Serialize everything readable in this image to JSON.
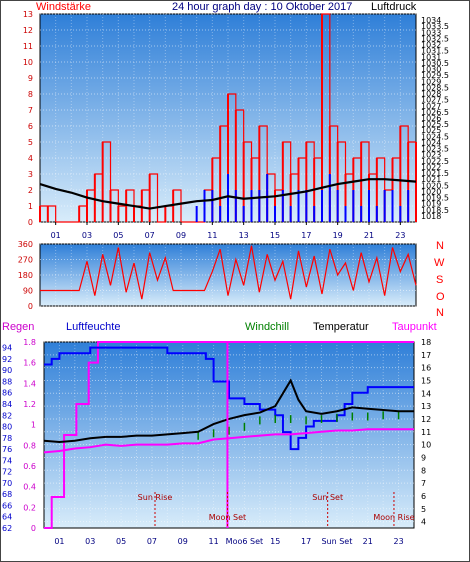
{
  "colors": {
    "red": "#ff0000",
    "blue": "#0000ff",
    "black": "#000000",
    "magenta": "#ff00ff",
    "green": "#008000",
    "dark_red": "#aa0000",
    "navy": "#000080",
    "bg_top": "#2f7fd8",
    "bg_bottom": "#d8ecfa"
  },
  "header": {
    "left": "Windstärke",
    "center": "24 hour graph day : 10 Oktober 2017",
    "right": "Luftdruck"
  },
  "direction_letters": [
    "N",
    "W",
    "S",
    "O",
    "N"
  ],
  "lower_header": {
    "regen": "Regen",
    "luftfeuchte": "Luftfeuchte",
    "windchill": "Windchill",
    "temperatur": "Temperatur",
    "taupunkt": "Taupunkt"
  },
  "annotations": [
    {
      "label": "Sun Rise",
      "hour": 7.2,
      "row": "upper"
    },
    {
      "label": "Moon Set",
      "hour": 11.9,
      "row": "lower"
    },
    {
      "label": "Sun Set",
      "hour": 18.4,
      "row": "upper"
    },
    {
      "label": "Moon Rise",
      "hour": 22.7,
      "row": "lower"
    }
  ],
  "x_ticks_bottom": [
    "01",
    "03",
    "05",
    "07",
    "09",
    "11",
    "Moo6 Set",
    "15",
    "17",
    "Sun Set",
    "21",
    "23"
  ],
  "chart_data": [
    {
      "type": "line",
      "title": "24 hour graph day : 10 Oktober 2017",
      "xlabel": "",
      "xlim": [
        0,
        24
      ],
      "x_ticks": [
        "01",
        "03",
        "05",
        "07",
        "09",
        "11",
        "13",
        "15",
        "17",
        "19",
        "21",
        "23"
      ],
      "y_left": {
        "label": "Windstärke",
        "ylim": [
          0,
          13
        ],
        "ticks": [
          "0",
          "1",
          "2",
          "3",
          "4",
          "5",
          "6",
          "7",
          "8",
          "9",
          "10",
          "11",
          "12",
          "13"
        ]
      },
      "y_right": {
        "label": "Luftdruck",
        "ylim": [
          1017.5,
          1034.5
        ],
        "ticks": [
          "1018",
          "1018.5",
          "1019",
          "1019.5",
          "1020",
          "1020.5",
          "1021",
          "1021.5",
          "1022",
          "1022.5",
          "1023",
          "1023.5",
          "1024",
          "1024.5",
          "1025",
          "1025.5",
          "1026",
          "1026.5",
          "1027",
          "1027.5",
          "1028",
          "1028.5",
          "1029",
          "1029.5",
          "1030",
          "1030.5",
          "1031",
          "1031.5",
          "1032",
          "1032.5",
          "1033",
          "1033.5",
          "1034"
        ]
      },
      "series": [
        {
          "name": "Windstärke",
          "axis": "left",
          "color": "#ff0000",
          "x": [
            0,
            0.5,
            1,
            1.5,
            2,
            2.5,
            3,
            3.5,
            4,
            4.5,
            5,
            5.5,
            6,
            6.5,
            7,
            7.5,
            8,
            8.5,
            9,
            9.5,
            10,
            10.5,
            11,
            11.5,
            12,
            12.5,
            13,
            13.5,
            14,
            14.5,
            15,
            15.5,
            16,
            16.5,
            17,
            17.5,
            18,
            18.5,
            19,
            19.5,
            20,
            20.5,
            21,
            21.5,
            22,
            22.5,
            23,
            23.5,
            24
          ],
          "y": [
            1,
            1,
            0,
            0,
            0,
            1,
            2,
            3,
            5,
            2,
            1,
            2,
            1,
            2,
            3,
            0,
            1,
            2,
            0,
            0,
            0,
            2,
            4,
            6,
            8,
            7,
            5,
            4,
            6,
            3,
            2,
            5,
            3,
            4,
            5,
            4,
            13,
            6,
            5,
            3,
            4,
            5,
            3,
            4,
            2,
            4,
            6,
            5,
            5
          ]
        },
        {
          "name": "Windstärke (Mittel)",
          "axis": "left",
          "color": "#0000ff",
          "x": [
            10,
            10.5,
            11,
            11.5,
            12,
            12.5,
            13,
            13.5,
            14,
            14.5,
            15,
            15.5,
            16,
            16.5,
            17,
            17.5,
            18,
            18.5,
            19,
            19.5,
            20,
            20.5,
            21,
            21.5,
            22,
            22.5,
            23,
            23.5
          ],
          "y": [
            1,
            2,
            2,
            1,
            3,
            2,
            1,
            2,
            2,
            3,
            1,
            2,
            1,
            2,
            2,
            1,
            2,
            3,
            2,
            1,
            2,
            1,
            2,
            1,
            2,
            2,
            1,
            2
          ]
        },
        {
          "name": "Luftdruck",
          "axis": "right",
          "color": "#000000",
          "x": [
            0,
            1,
            2,
            3,
            4,
            5,
            6,
            7,
            8,
            9,
            10,
            11,
            12,
            13,
            14,
            15,
            16,
            17,
            18,
            19,
            20,
            21,
            22,
            23,
            24
          ],
          "y": [
            1020.6,
            1020.2,
            1019.9,
            1019.5,
            1019.2,
            1019.0,
            1018.8,
            1018.6,
            1018.8,
            1019.0,
            1019.2,
            1019.3,
            1019.6,
            1019.4,
            1019.5,
            1019.6,
            1019.8,
            1020.0,
            1020.3,
            1020.6,
            1020.8,
            1021.0,
            1021.0,
            1020.9,
            1020.8
          ]
        }
      ]
    },
    {
      "type": "line",
      "title": "",
      "xlim": [
        0,
        24
      ],
      "x_ticks": [
        "01",
        "03",
        "05",
        "07",
        "09",
        "11",
        "13",
        "15",
        "17",
        "19",
        "21",
        "23"
      ],
      "y_left": {
        "label": "",
        "ylim": [
          0,
          360
        ],
        "ticks": [
          "0",
          "90",
          "180",
          "270",
          "360"
        ]
      },
      "y_right_labels": [
        "N",
        "W",
        "S",
        "O",
        "N"
      ],
      "series": [
        {
          "name": "Windrichtung",
          "color": "#ff0000",
          "x": [
            0,
            0.5,
            1,
            1.5,
            2,
            2.5,
            3,
            3.5,
            4,
            4.5,
            5,
            5.5,
            6,
            6.5,
            7,
            7.5,
            8,
            8.5,
            9,
            9.5,
            10,
            10.5,
            11,
            11.5,
            12,
            12.5,
            13,
            13.5,
            14,
            14.5,
            15,
            15.5,
            16,
            16.5,
            17,
            17.5,
            18,
            18.5,
            19,
            19.5,
            20,
            20.5,
            21,
            21.5,
            22,
            22.5,
            23,
            23.5,
            24
          ],
          "y": [
            90,
            90,
            90,
            90,
            90,
            90,
            260,
            60,
            300,
            120,
            340,
            80,
            250,
            40,
            310,
            150,
            280,
            90,
            90,
            90,
            90,
            90,
            200,
            330,
            60,
            270,
            120,
            350,
            80,
            300,
            150,
            260,
            40,
            320,
            110,
            290,
            70,
            330,
            180,
            250,
            90,
            310,
            140,
            280,
            60,
            340,
            200,
            300,
            120
          ]
        }
      ]
    },
    {
      "type": "line",
      "title": "",
      "xlim": [
        0,
        24
      ],
      "x_ticks": [
        "01",
        "03",
        "05",
        "07",
        "09",
        "11",
        "13",
        "15",
        "17",
        "19",
        "21",
        "23"
      ],
      "y_left_regen": {
        "label": "Regen",
        "ylim": [
          0,
          1.8
        ],
        "ticks": [
          "0",
          "0.2",
          "0.4",
          "0.6",
          "0.8",
          "1",
          "1.2",
          "1.4",
          "1.6",
          "1.8"
        ]
      },
      "y_left_feuchte": {
        "label": "Luftfeuchte",
        "ylim": [
          62,
          95
        ],
        "ticks": [
          "62",
          "64",
          "66",
          "68",
          "70",
          "72",
          "74",
          "76",
          "78",
          "80",
          "82",
          "84",
          "86",
          "88",
          "90",
          "92",
          "94"
        ]
      },
      "y_right": {
        "label": "Temperatur",
        "ylim": [
          3.5,
          18
        ],
        "ticks": [
          "4",
          "5",
          "6",
          "7",
          "8",
          "9",
          "10",
          "11",
          "12",
          "13",
          "14",
          "15",
          "16",
          "17",
          "18"
        ]
      },
      "series": [
        {
          "name": "Regen",
          "axis": "regen",
          "color": "#ff00ff",
          "x": [
            0,
            0.4,
            0.5,
            1.2,
            1.3,
            2,
            2.1,
            2.8,
            2.9,
            3.4,
            3.5,
            12,
            12.01,
            12.02,
            24
          ],
          "y": [
            0,
            0,
            0.3,
            0.3,
            0.9,
            0.9,
            1.2,
            1.2,
            1.6,
            1.6,
            1.8,
            1.8,
            1.8,
            1.8,
            1.8
          ]
        },
        {
          "name": "Luftfeuchte",
          "axis": "feuchte",
          "color": "#0000ff",
          "x": [
            0,
            0.5,
            1,
            2,
            3,
            4,
            5,
            6,
            7,
            8,
            9,
            10,
            10.5,
            11,
            12,
            13,
            14,
            15,
            15.5,
            16,
            16.5,
            17,
            17.5,
            18,
            19,
            19.5,
            20,
            21,
            22,
            23,
            24
          ],
          "y": [
            91,
            92,
            93,
            93,
            94,
            94,
            94,
            94,
            94,
            93,
            93,
            93,
            92,
            88,
            85,
            84,
            83,
            82,
            79,
            76,
            78,
            80,
            81,
            81,
            82,
            84,
            86,
            87,
            87,
            87,
            87
          ]
        },
        {
          "name": "Temperatur",
          "axis": "temp",
          "color": "#000000",
          "x": [
            0,
            1,
            2,
            3,
            4,
            5,
            6,
            7,
            8,
            9,
            10,
            11,
            12,
            13,
            14,
            15,
            15.5,
            16,
            16.5,
            17,
            18,
            19,
            20,
            21,
            22,
            23,
            24
          ],
          "y": [
            10.3,
            10.2,
            10.3,
            10.5,
            10.6,
            10.6,
            10.7,
            10.7,
            10.8,
            10.9,
            11.0,
            11.6,
            12.0,
            12.3,
            12.5,
            13.0,
            14.0,
            15.0,
            13.5,
            12.6,
            12.4,
            12.6,
            12.9,
            12.8,
            12.7,
            12.6,
            12.6
          ]
        },
        {
          "name": "Windchill",
          "axis": "temp",
          "color": "#008000",
          "x": [
            10,
            11,
            12,
            13,
            14,
            15,
            16,
            17,
            18,
            19,
            20,
            21,
            22,
            23
          ],
          "y": [
            11.0,
            11.2,
            11.4,
            11.7,
            12.2,
            12.3,
            12.3,
            12.2,
            12.3,
            12.4,
            12.5,
            12.5,
            12.6,
            12.6
          ]
        },
        {
          "name": "Taupunkt",
          "axis": "temp",
          "color": "#ff00ff",
          "x": [
            0,
            1,
            2,
            3,
            4,
            5,
            6,
            7,
            8,
            9,
            10,
            11,
            12,
            13,
            14,
            15,
            16,
            17,
            18,
            19,
            20,
            21,
            22,
            23,
            24
          ],
          "y": [
            9.4,
            9.5,
            9.7,
            9.8,
            10.0,
            9.9,
            10.0,
            10.0,
            10.0,
            10.1,
            10.1,
            10.4,
            10.5,
            10.6,
            10.7,
            10.8,
            10.8,
            10.9,
            11.0,
            11.1,
            11.1,
            11.2,
            11.2,
            11.2,
            11.2
          ]
        }
      ]
    }
  ]
}
